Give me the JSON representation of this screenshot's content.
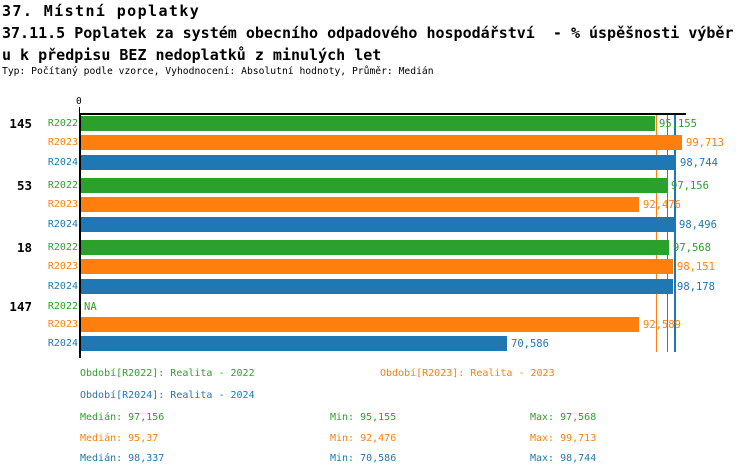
{
  "header": {
    "title": "37. Místní poplatky",
    "subtitle_line1": "37.11.5 Poplatek za systém obecního odpadového hospodářství  - % úspěšnosti výběr",
    "subtitle_line2": "u k předpisu BEZ nedoplatků z minulých let",
    "meta": "Typ: Počítaný podle vzorce, Vyhodnocení: Absolutní hodnoty, Průměr: Medián"
  },
  "colors": {
    "R2022": "#2ca02c",
    "R2023": "#ff7f0e",
    "R2024": "#1f77b4",
    "axis": "#000000"
  },
  "chart_data": {
    "type": "bar",
    "orientation": "horizontal",
    "value_axis": {
      "range": [
        0,
        100.5
      ],
      "tick_labels": [
        "0"
      ]
    },
    "series_names": [
      "R2022",
      "R2023",
      "R2024"
    ],
    "groups": [
      {
        "label": "145",
        "bars": [
          {
            "series": "R2022",
            "value": 95.155,
            "display": "95,155"
          },
          {
            "series": "R2023",
            "value": 99.713,
            "display": "99,713"
          },
          {
            "series": "R2024",
            "value": 98.744,
            "display": "98,744"
          }
        ]
      },
      {
        "label": "53",
        "bars": [
          {
            "series": "R2022",
            "value": 97.156,
            "display": "97,156"
          },
          {
            "series": "R2023",
            "value": 92.476,
            "display": "92,476"
          },
          {
            "series": "R2024",
            "value": 98.496,
            "display": "98,496"
          }
        ]
      },
      {
        "label": "18",
        "bars": [
          {
            "series": "R2022",
            "value": 97.568,
            "display": "97,568"
          },
          {
            "series": "R2023",
            "value": 98.151,
            "display": "98,151"
          },
          {
            "series": "R2024",
            "value": 98.178,
            "display": "98,178"
          }
        ]
      },
      {
        "label": "147",
        "bars": [
          {
            "series": "R2022",
            "value": null,
            "display": "NA"
          },
          {
            "series": "R2023",
            "value": 92.589,
            "display": "92,589"
          },
          {
            "series": "R2024",
            "value": 70.586,
            "display": "70,586"
          }
        ]
      }
    ],
    "median_lines": [
      {
        "series": "R2023",
        "value": 95.37
      },
      {
        "series": "R2022",
        "value": 97.156
      },
      {
        "series": "R2024",
        "value": 98.337
      }
    ]
  },
  "legend": [
    {
      "series": "R2022",
      "label": "Období[R2022]: Realita - 2022"
    },
    {
      "series": "R2023",
      "label": "Období[R2023]: Realita - 2023"
    },
    {
      "series": "R2024",
      "label": "Období[R2024]: Realita - 2024"
    }
  ],
  "stats": [
    {
      "series": "R2022",
      "median": "Medián: 97,156",
      "min": "Min: 95,155",
      "max": "Max: 97,568"
    },
    {
      "series": "R2023",
      "median": "Medián: 95,37",
      "min": "Min: 92,476",
      "max": "Max: 99,713"
    },
    {
      "series": "R2024",
      "median": "Medián: 98,337",
      "min": "Min: 70,586",
      "max": "Max: 98,744"
    }
  ]
}
